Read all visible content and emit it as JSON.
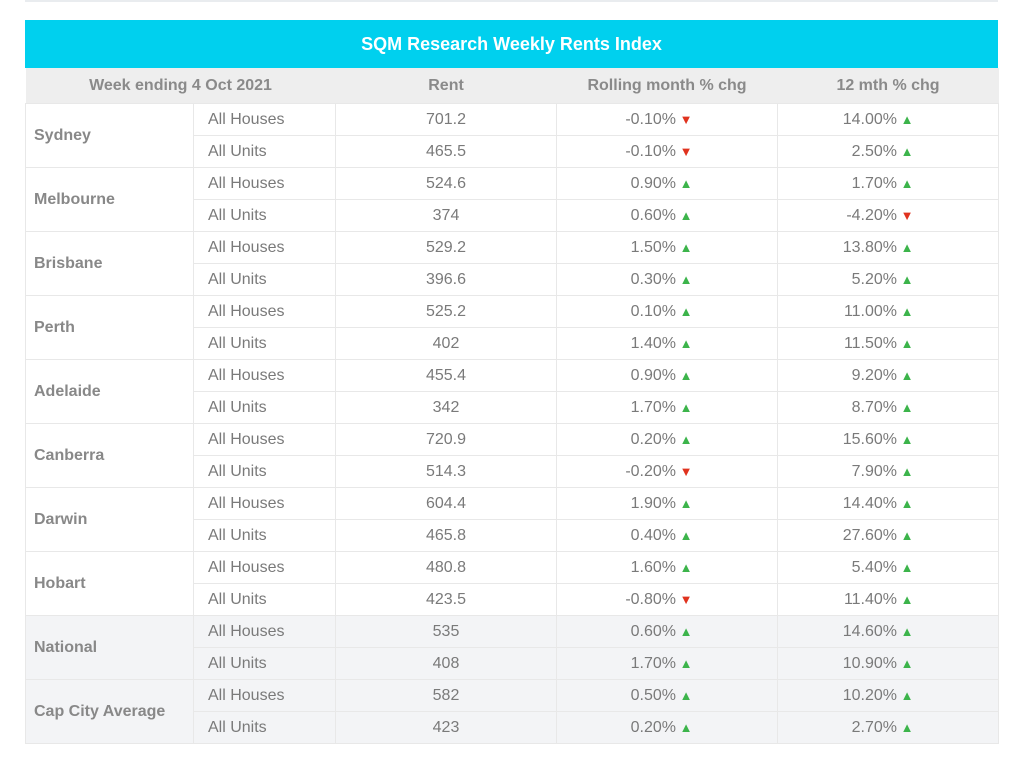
{
  "title": "SQM Research Weekly Rents Index",
  "headers": [
    "Week ending 4 Oct 2021",
    "Rent",
    "Rolling month % chg",
    "12 mth % chg"
  ],
  "colors": {
    "title_bar": "#00d0ee",
    "up": "#3cb44b",
    "down": "#e0321e"
  },
  "cities": [
    {
      "name": "Sydney",
      "rows": [
        {
          "type": "All Houses",
          "rent": "701.2",
          "month": "-0.10%",
          "month_dir": "down",
          "year": "14.00%",
          "year_dir": "up"
        },
        {
          "type": "All Units",
          "rent": "465.5",
          "month": "-0.10%",
          "month_dir": "down",
          "year": "2.50%",
          "year_dir": "up"
        }
      ]
    },
    {
      "name": "Melbourne",
      "rows": [
        {
          "type": "All Houses",
          "rent": "524.6",
          "month": "0.90%",
          "month_dir": "up",
          "year": "1.70%",
          "year_dir": "up"
        },
        {
          "type": "All Units",
          "rent": "374",
          "month": "0.60%",
          "month_dir": "up",
          "year": "-4.20%",
          "year_dir": "down"
        }
      ]
    },
    {
      "name": "Brisbane",
      "rows": [
        {
          "type": "All Houses",
          "rent": "529.2",
          "month": "1.50%",
          "month_dir": "up",
          "year": "13.80%",
          "year_dir": "up"
        },
        {
          "type": "All Units",
          "rent": "396.6",
          "month": "0.30%",
          "month_dir": "up",
          "year": "5.20%",
          "year_dir": "up"
        }
      ]
    },
    {
      "name": "Perth",
      "rows": [
        {
          "type": "All Houses",
          "rent": "525.2",
          "month": "0.10%",
          "month_dir": "up",
          "year": "11.00%",
          "year_dir": "up"
        },
        {
          "type": "All Units",
          "rent": "402",
          "month": "1.40%",
          "month_dir": "up",
          "year": "11.50%",
          "year_dir": "up"
        }
      ]
    },
    {
      "name": "Adelaide",
      "rows": [
        {
          "type": "All Houses",
          "rent": "455.4",
          "month": "0.90%",
          "month_dir": "up",
          "year": "9.20%",
          "year_dir": "up"
        },
        {
          "type": "All Units",
          "rent": "342",
          "month": "1.70%",
          "month_dir": "up",
          "year": "8.70%",
          "year_dir": "up"
        }
      ]
    },
    {
      "name": "Canberra",
      "rows": [
        {
          "type": "All Houses",
          "rent": "720.9",
          "month": "0.20%",
          "month_dir": "up",
          "year": "15.60%",
          "year_dir": "up"
        },
        {
          "type": "All Units",
          "rent": "514.3",
          "month": "-0.20%",
          "month_dir": "down",
          "year": "7.90%",
          "year_dir": "up"
        }
      ]
    },
    {
      "name": "Darwin",
      "rows": [
        {
          "type": "All Houses",
          "rent": "604.4",
          "month": "1.90%",
          "month_dir": "up",
          "year": "14.40%",
          "year_dir": "up"
        },
        {
          "type": "All Units",
          "rent": "465.8",
          "month": "0.40%",
          "month_dir": "up",
          "year": "27.60%",
          "year_dir": "up"
        }
      ]
    },
    {
      "name": "Hobart",
      "rows": [
        {
          "type": "All Houses",
          "rent": "480.8",
          "month": "1.60%",
          "month_dir": "up",
          "year": "5.40%",
          "year_dir": "up"
        },
        {
          "type": "All Units",
          "rent": "423.5",
          "month": "-0.80%",
          "month_dir": "down",
          "year": "11.40%",
          "year_dir": "up"
        }
      ]
    },
    {
      "name": "National",
      "summary": true,
      "rows": [
        {
          "type": "All Houses",
          "rent": "535",
          "month": "0.60%",
          "month_dir": "up",
          "year": "14.60%",
          "year_dir": "up"
        },
        {
          "type": "All Units",
          "rent": "408",
          "month": "1.70%",
          "month_dir": "up",
          "year": "10.90%",
          "year_dir": "up"
        }
      ]
    },
    {
      "name": "Cap City Average",
      "summary": true,
      "rows": [
        {
          "type": "All Houses",
          "rent": "582",
          "month": "0.50%",
          "month_dir": "up",
          "year": "10.20%",
          "year_dir": "up"
        },
        {
          "type": "All Units",
          "rent": "423",
          "month": "0.20%",
          "month_dir": "up",
          "year": "2.70%",
          "year_dir": "up"
        }
      ]
    }
  ]
}
